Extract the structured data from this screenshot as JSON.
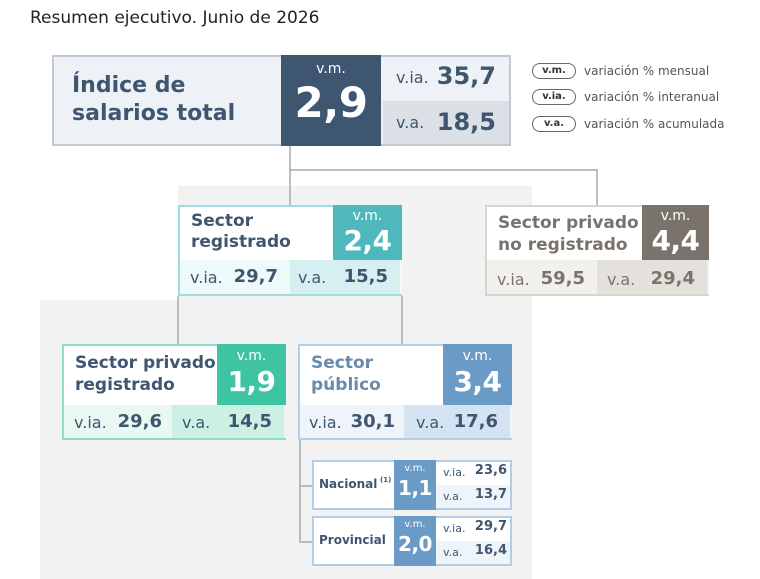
{
  "title": "Resumen ejecutivo. Junio de 2026",
  "legend": [
    {
      "abbr": "v.m.",
      "text": "variación % mensual"
    },
    {
      "abbr": "v.ia.",
      "text": "variación % interanual"
    },
    {
      "abbr": "v.a.",
      "text": "variación % acumulada"
    }
  ],
  "total": {
    "label_1": "Índice de",
    "label_2": "salarios total",
    "vm_label": "v.m.",
    "vm": "2,9",
    "via_label": "v.ia.",
    "via": "35,7",
    "va_label": "v.a.",
    "va": "18,5"
  },
  "registrado": {
    "label_1": "Sector",
    "label_2": "registrado",
    "vm_label": "v.m.",
    "vm": "2,4",
    "via_label": "v.ia.",
    "via": "29,7",
    "va_label": "v.a.",
    "va": "15,5"
  },
  "no_registrado": {
    "label_1": "Sector privado",
    "label_2": "no registrado",
    "vm_label": "v.m.",
    "vm": "4,4",
    "via_label": "v.ia.",
    "via": "59,5",
    "va_label": "v.a.",
    "va": "29,4"
  },
  "privado_registrado": {
    "label_1": "Sector privado",
    "label_2": "registrado",
    "vm_label": "v.m.",
    "vm": "1,9",
    "via_label": "v.ia.",
    "via": "29,6",
    "va_label": "v.a.",
    "va": "14,5"
  },
  "publico": {
    "label_1": "Sector",
    "label_2": "público",
    "vm_label": "v.m.",
    "vm": "3,4",
    "via_label": "v.ia.",
    "via": "30,1",
    "va_label": "v.a.",
    "va": "17,6"
  },
  "nacional": {
    "label": "Nacional",
    "note": "(1)",
    "vm_label": "v.m.",
    "vm": "1,1",
    "via_label": "v.ia.",
    "via": "23,6",
    "va_label": "v.a.",
    "va": "13,7"
  },
  "provincial": {
    "label": "Provincial",
    "vm_label": "v.m.",
    "vm": "2,0",
    "via_label": "v.ia.",
    "via": "29,7",
    "va_label": "v.a.",
    "va": "16,4"
  },
  "colors": {
    "total_dark": "#3e5670",
    "registrado_teal": "#4fb8bc",
    "no_registrado_gray": "#7a736b",
    "privado_green": "#3ec4a2",
    "publico_blue": "#6a9ac6"
  }
}
